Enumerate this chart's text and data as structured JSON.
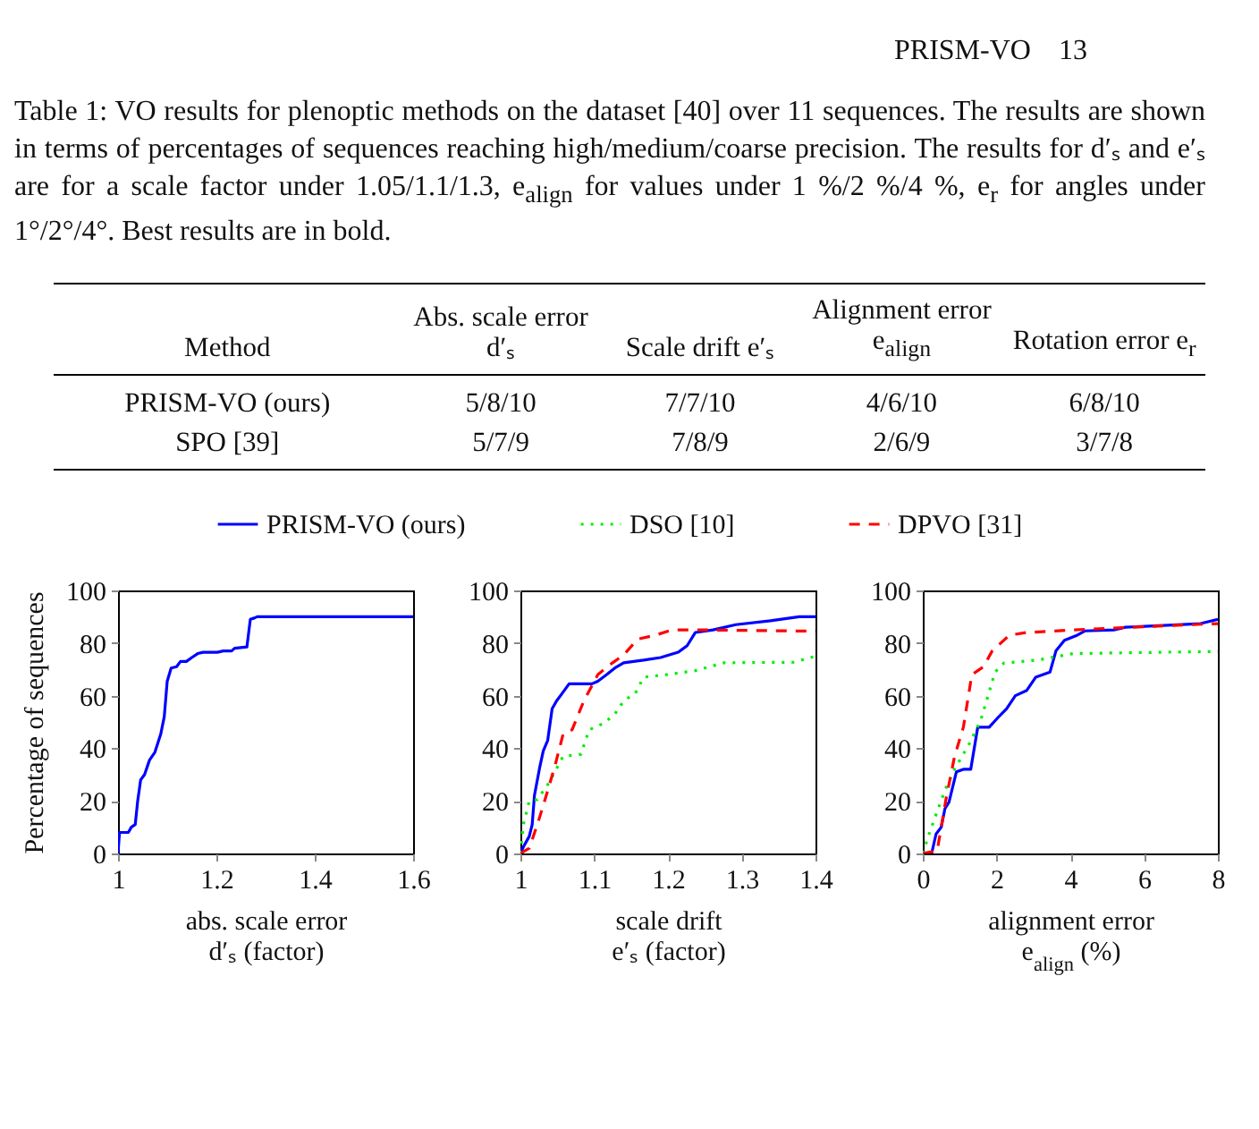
{
  "chart_data": [
    {
      "type": "other",
      "title": "Table 1: VO results for plenoptic methods on the dataset [40] over 11 sequences. The results are shown in terms of percentages of sequences reaching high/medium/coarse precision. The results for d′ₛ and e′ₛ are for a scale factor under 1.05/1.1/1.3, e$_{align}$ for values under 1 %/2 %/4 %, e$_{r}$ for angles under 1°/2°/4°. Best results are in bold.",
      "categories": [
        "Method",
        "Abs. scale error d′ₛ",
        "Scale drift e′ₛ",
        "Alignment error e$_{align}$",
        "Rotation error e$_{r}$"
      ],
      "annotations": [
        "PRISM-VO",
        "13",
        "PRISM-VO (ours)",
        "5/8/10",
        "7/7/10",
        "4/6/10",
        "6/8/10",
        "SPO [39]",
        "5/7/9",
        "7/8/9",
        "2/6/9",
        "3/7/8"
      ]
    },
    {
      "type": "line",
      "xlabel": "abs. scale error\nd′ₛ (factor)",
      "ylabel": "Percentage of sequences",
      "xlim": [
        1,
        1.6
      ],
      "xticks": [
        1,
        1.2,
        1.4,
        1.6
      ],
      "ylim": [
        0,
        100
      ],
      "yticks": [
        0,
        20,
        40,
        60,
        80,
        100
      ],
      "legend": "top",
      "series": [
        {
          "name": "PRISM-VO (ours)",
          "color": "#0000ff",
          "line_style": "solid",
          "x": [
            1,
            1.003,
            1.021,
            1.027,
            1.035,
            1.04,
            1.046,
            1.054,
            1.064,
            1.075,
            1.087,
            1.094,
            1.1,
            1.108,
            1.119,
            1.127,
            1.139,
            1.15,
            1.162,
            1.173,
            1.202,
            1.214,
            1.231,
            1.237,
            1.262,
            1.269,
            1.277,
            1.283,
            1.6
          ],
          "values": [
            0,
            8,
            8,
            10,
            11,
            20,
            28,
            30,
            35.5,
            38.5,
            45.5,
            52,
            65.5,
            70.5,
            71,
            73,
            73,
            74.5,
            76,
            76.5,
            76.5,
            77,
            77,
            78,
            78.5,
            89,
            89.5,
            90,
            90
          ]
        }
      ]
    },
    {
      "type": "line",
      "xlabel": "scale drift\ne′ₛ (factor)",
      "xlim": [
        1,
        1.4
      ],
      "xticks": [
        1,
        1.1,
        1.2,
        1.3,
        1.4
      ],
      "ylim": [
        0,
        100
      ],
      "yticks": [
        0,
        20,
        40,
        60,
        80,
        100
      ],
      "legend": "top",
      "series": [
        {
          "name": "PRISM-VO (ours)",
          "color": "#0000ff",
          "line_style": "solid",
          "x": [
            1,
            1.005,
            1.012,
            1.016,
            1.019,
            1.026,
            1.031,
            1.037,
            1.043,
            1.049,
            1.057,
            1.066,
            1.097,
            1.105,
            1.117,
            1.128,
            1.14,
            1.167,
            1.19,
            1.214,
            1.226,
            1.237,
            1.261,
            1.292,
            1.339,
            1.378,
            1.4
          ],
          "values": [
            0,
            3,
            6.5,
            11,
            22,
            32.5,
            39,
            43,
            55,
            58,
            61,
            64.5,
            64.5,
            65.5,
            68,
            70.5,
            72.5,
            73.5,
            74.5,
            76.5,
            79,
            84,
            85,
            87,
            88.5,
            90,
            90
          ]
        },
        {
          "name": "DSO [10]",
          "color": "#00ee00",
          "line_style": "dotted",
          "x": [
            1,
            1.004,
            1.012,
            1.023,
            1.039,
            1.058,
            1.082,
            1.093,
            1.113,
            1.128,
            1.14,
            1.156,
            1.167,
            1.198,
            1.237,
            1.276,
            1.37,
            1.4
          ],
          "values": [
            0,
            11,
            20,
            20.5,
            27,
            37,
            37.7,
            47,
            49.5,
            53,
            58,
            61,
            67,
            68,
            69.5,
            72.5,
            72.7,
            75
          ]
        },
        {
          "name": "DPVO [31]",
          "color": "#ff0000",
          "line_style": "dashed",
          "x": [
            1,
            1.012,
            1.023,
            1.035,
            1.047,
            1.058,
            1.07,
            1.086,
            1.105,
            1.125,
            1.14,
            1.159,
            1.183,
            1.206,
            1.245,
            1.4
          ],
          "values": [
            0,
            2,
            11,
            22,
            33.5,
            45.5,
            47,
            58,
            68,
            72.5,
            75.5,
            81.5,
            83,
            85,
            85,
            84.5
          ]
        }
      ]
    },
    {
      "type": "line",
      "xlabel": "alignment error\ne$_{align}$ (%)",
      "xlim": [
        0,
        8
      ],
      "xticks": [
        0,
        2,
        4,
        6,
        8
      ],
      "ylim": [
        0,
        100
      ],
      "yticks": [
        0,
        20,
        40,
        60,
        80,
        100
      ],
      "legend": "top",
      "series": [
        {
          "name": "PRISM-VO (ours)",
          "color": "#0000ff",
          "line_style": "solid",
          "x": [
            0,
            0.24,
            0.36,
            0.5,
            0.6,
            0.71,
            0.91,
            1.1,
            1.3,
            1.49,
            1.8,
            2.04,
            2.27,
            2.51,
            2.82,
            3.06,
            3.45,
            3.61,
            3.84,
            4.16,
            4.39,
            5.18,
            5.49,
            7.53,
            8
          ],
          "values": [
            0,
            0,
            7.4,
            10,
            17,
            19.5,
            31,
            32,
            32,
            48,
            48,
            51.7,
            55,
            60,
            62,
            67,
            69,
            77,
            81,
            82.8,
            84.6,
            85,
            86,
            87.4,
            89
          ]
        },
        {
          "name": "DSO [10]",
          "color": "#00ee00",
          "line_style": "dotted",
          "x": [
            0,
            0.16,
            0.39,
            0.63,
            0.86,
            1.25,
            1.57,
            1.96,
            2.2,
            3.14,
            4.08,
            8
          ],
          "values": [
            0,
            7,
            16,
            25,
            32,
            41.4,
            50.6,
            69,
            72.4,
            73.6,
            76,
            76.8
          ]
        },
        {
          "name": "DPVO [31]",
          "color": "#ff0000",
          "line_style": "dashed",
          "x": [
            0,
            0.39,
            0.63,
            0.86,
            1.1,
            1.33,
            1.65,
            1.88,
            2.35,
            2.82,
            4.08,
            5.65,
            8
          ],
          "values": [
            0,
            1,
            20.7,
            36.8,
            48,
            68,
            71,
            77,
            83,
            84,
            85,
            86,
            87.4
          ]
        }
      ]
    }
  ]
}
